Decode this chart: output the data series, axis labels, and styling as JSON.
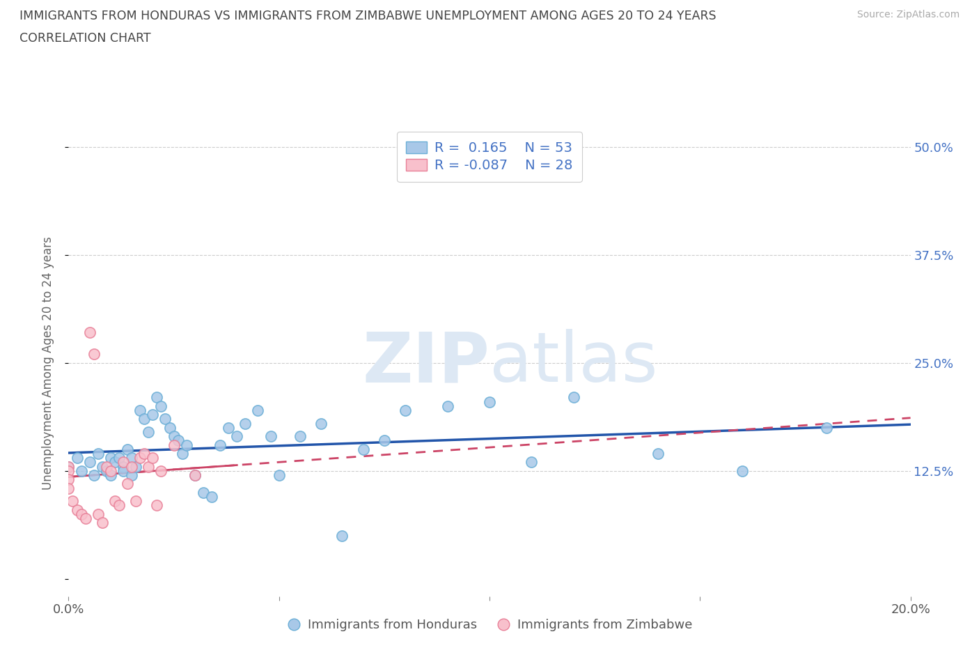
{
  "title_line1": "IMMIGRANTS FROM HONDURAS VS IMMIGRANTS FROM ZIMBABWE UNEMPLOYMENT AMONG AGES 20 TO 24 YEARS",
  "title_line2": "CORRELATION CHART",
  "source": "Source: ZipAtlas.com",
  "ylabel": "Unemployment Among Ages 20 to 24 years",
  "xlim": [
    0.0,
    0.2
  ],
  "ylim": [
    -0.02,
    0.52
  ],
  "yticks": [
    0.0,
    0.125,
    0.25,
    0.375,
    0.5
  ],
  "ytick_labels": [
    "",
    "12.5%",
    "25.0%",
    "37.5%",
    "50.0%"
  ],
  "xticks": [
    0.0,
    0.05,
    0.1,
    0.15,
    0.2
  ],
  "xtick_labels": [
    "0.0%",
    "",
    "",
    "",
    "20.0%"
  ],
  "honduras_R": 0.165,
  "honduras_N": 53,
  "zimbabwe_R": -0.087,
  "zimbabwe_N": 28,
  "honduras_color": "#a8c8e8",
  "honduras_edge_color": "#6aaed6",
  "zimbabwe_color": "#f8c0cc",
  "zimbabwe_edge_color": "#e88098",
  "honduras_line_color": "#2255aa",
  "zimbabwe_line_color": "#cc4466",
  "watermark_zip": "ZIP",
  "watermark_atlas": "atlas",
  "legend_label_honduras": "Immigrants from Honduras",
  "legend_label_zimbabwe": "Immigrants from Zimbabwe",
  "honduras_x": [
    0.0,
    0.002,
    0.003,
    0.005,
    0.006,
    0.007,
    0.008,
    0.009,
    0.01,
    0.01,
    0.011,
    0.012,
    0.013,
    0.013,
    0.014,
    0.015,
    0.015,
    0.016,
    0.017,
    0.018,
    0.019,
    0.02,
    0.021,
    0.022,
    0.023,
    0.024,
    0.025,
    0.026,
    0.027,
    0.028,
    0.03,
    0.032,
    0.034,
    0.036,
    0.038,
    0.04,
    0.042,
    0.045,
    0.048,
    0.05,
    0.055,
    0.06,
    0.065,
    0.07,
    0.075,
    0.08,
    0.09,
    0.1,
    0.11,
    0.12,
    0.14,
    0.16,
    0.18
  ],
  "honduras_y": [
    0.13,
    0.14,
    0.125,
    0.135,
    0.12,
    0.145,
    0.13,
    0.125,
    0.14,
    0.12,
    0.135,
    0.14,
    0.13,
    0.125,
    0.15,
    0.12,
    0.14,
    0.13,
    0.195,
    0.185,
    0.17,
    0.19,
    0.21,
    0.2,
    0.185,
    0.175,
    0.165,
    0.16,
    0.145,
    0.155,
    0.12,
    0.1,
    0.095,
    0.155,
    0.175,
    0.165,
    0.18,
    0.195,
    0.165,
    0.12,
    0.165,
    0.18,
    0.05,
    0.15,
    0.16,
    0.195,
    0.2,
    0.205,
    0.135,
    0.21,
    0.145,
    0.125,
    0.175
  ],
  "zimbabwe_x": [
    0.0,
    0.0,
    0.0,
    0.0,
    0.001,
    0.002,
    0.003,
    0.004,
    0.005,
    0.006,
    0.007,
    0.008,
    0.009,
    0.01,
    0.011,
    0.012,
    0.013,
    0.014,
    0.015,
    0.016,
    0.017,
    0.018,
    0.019,
    0.02,
    0.021,
    0.022,
    0.025,
    0.03
  ],
  "zimbabwe_y": [
    0.13,
    0.125,
    0.115,
    0.105,
    0.09,
    0.08,
    0.075,
    0.07,
    0.285,
    0.26,
    0.075,
    0.065,
    0.13,
    0.125,
    0.09,
    0.085,
    0.135,
    0.11,
    0.13,
    0.09,
    0.14,
    0.145,
    0.13,
    0.14,
    0.085,
    0.125,
    0.155,
    0.12
  ]
}
